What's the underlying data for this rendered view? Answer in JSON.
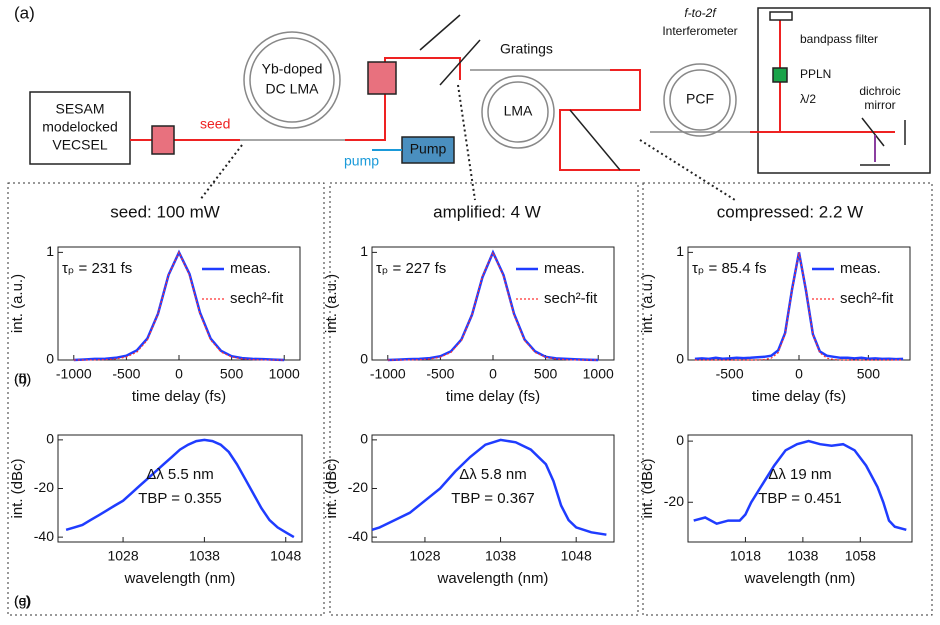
{
  "diagram": {
    "panel_label": "(a)",
    "sesam": [
      "SESAM",
      "modelocked",
      "VECSEL"
    ],
    "seed": "seed",
    "amplifier": [
      "Yb-doped",
      "DC LMA"
    ],
    "pump_arrow": "pump",
    "pump_box": "Pump",
    "gratings": "Gratings",
    "lma": "LMA",
    "pcf": "PCF",
    "interferometer": [
      "f-to-2f",
      "Interferometer"
    ],
    "bandpass": "bandpass filter",
    "ppln": "PPLN",
    "waveplate": "λ/2",
    "dichroic": [
      "dichroic",
      "mirror"
    ]
  },
  "chart_data": [
    {
      "type": "line",
      "label": "(b)",
      "title": "seed: 100 mW",
      "xlabel": "time delay (fs)",
      "ylabel": "int. (a.u.)",
      "annotations": [
        "τₚ = 231 fs"
      ],
      "legend": "upper right",
      "x": [
        -1000,
        -900,
        -800,
        -700,
        -600,
        -500,
        -400,
        -300,
        -200,
        -100,
        0,
        100,
        200,
        300,
        400,
        500,
        600,
        700,
        800,
        900,
        1000
      ],
      "series": [
        {
          "name": "meas.",
          "color": "#1f3cff",
          "values": [
            0,
            0.005,
            0.01,
            0.012,
            0.02,
            0.04,
            0.09,
            0.2,
            0.43,
            0.79,
            1,
            0.8,
            0.44,
            0.2,
            0.085,
            0.035,
            0.018,
            0.01,
            0.008,
            0.004,
            0
          ]
        },
        {
          "name": "sech²-fit",
          "color": "#ff3030",
          "values": [
            0,
            0,
            0.001,
            0.004,
            0.01,
            0.028,
            0.073,
            0.186,
            0.427,
            0.79,
            1,
            0.79,
            0.427,
            0.186,
            0.073,
            0.028,
            0.01,
            0.004,
            0.001,
            0,
            0
          ]
        }
      ],
      "xlim": [
        -1150,
        1150
      ],
      "ylim": [
        0,
        1.05
      ],
      "xticks": [
        -1000,
        -500,
        0,
        500,
        1000
      ],
      "yticks": [
        0,
        1
      ]
    },
    {
      "type": "line",
      "label": "(c)",
      "xlabel": "wavelength (nm)",
      "ylabel": "int. (dBc)",
      "annotations": [
        "Δλ 5.5 nm",
        "TBP = 0.355"
      ],
      "x": [
        1021,
        1022,
        1023,
        1024,
        1025,
        1026,
        1027,
        1028,
        1029,
        1030,
        1031,
        1032,
        1033,
        1034,
        1035,
        1036,
        1037,
        1038,
        1039,
        1040,
        1041,
        1042,
        1043,
        1044,
        1045,
        1046,
        1047,
        1048,
        1049
      ],
      "series": [
        {
          "color": "#1f3cff",
          "values": [
            -37,
            -36,
            -35,
            -33,
            -31,
            -29,
            -27,
            -25,
            -22,
            -19,
            -16,
            -13,
            -10,
            -7,
            -4,
            -2,
            -0.5,
            0,
            -0.5,
            -2,
            -5,
            -10,
            -16,
            -22,
            -28,
            -33,
            -36,
            -38,
            -40
          ]
        }
      ],
      "xlim": [
        1020,
        1050
      ],
      "ylim": [
        -42,
        2
      ],
      "xticks": [
        1028,
        1038,
        1048
      ],
      "yticks": [
        -40,
        -20,
        0
      ]
    },
    {
      "type": "line",
      "label": "(d)",
      "title": "amplified: 4 W",
      "xlabel": "time delay (fs)",
      "ylabel": "int. (a.u.)",
      "annotations": [
        "τₚ = 227 fs"
      ],
      "legend": "upper right",
      "x": [
        -1000,
        -900,
        -800,
        -700,
        -600,
        -500,
        -400,
        -300,
        -200,
        -100,
        0,
        100,
        200,
        300,
        400,
        500,
        600,
        700,
        800,
        900,
        1000
      ],
      "series": [
        {
          "name": "meas.",
          "color": "#1f3cff",
          "values": [
            0,
            0.004,
            0.008,
            0.01,
            0.018,
            0.035,
            0.08,
            0.19,
            0.42,
            0.77,
            1,
            0.79,
            0.43,
            0.19,
            0.08,
            0.03,
            0.015,
            0.01,
            0.006,
            0.003,
            0
          ]
        },
        {
          "name": "sech²-fit",
          "color": "#ff3030",
          "values": [
            0,
            0,
            0.001,
            0.003,
            0.009,
            0.026,
            0.07,
            0.18,
            0.42,
            0.78,
            1,
            0.78,
            0.42,
            0.18,
            0.07,
            0.026,
            0.009,
            0.003,
            0.001,
            0,
            0
          ]
        }
      ],
      "xlim": [
        -1150,
        1150
      ],
      "ylim": [
        0,
        1.05
      ],
      "xticks": [
        -1000,
        -500,
        0,
        500,
        1000
      ],
      "yticks": [
        0,
        1
      ]
    },
    {
      "type": "line",
      "label": "(e)",
      "xlabel": "wavelength (nm)",
      "ylabel": "int. (dBc)",
      "annotations": [
        "Δλ 5.8 nm",
        "TBP = 0.367"
      ],
      "x": [
        1021,
        1022,
        1024,
        1026,
        1028,
        1030,
        1032,
        1034,
        1036,
        1038,
        1040,
        1042,
        1044,
        1045,
        1046,
        1047,
        1048,
        1050,
        1052
      ],
      "series": [
        {
          "color": "#1f3cff",
          "values": [
            -37,
            -36,
            -33,
            -30,
            -25,
            -20,
            -13,
            -7,
            -2,
            0,
            -1,
            -4,
            -10,
            -17,
            -27,
            -33,
            -36,
            -38,
            -39
          ]
        }
      ],
      "xlim": [
        1021,
        1053
      ],
      "ylim": [
        -42,
        2
      ],
      "xticks": [
        1028,
        1038,
        1048
      ],
      "yticks": [
        -40,
        -20,
        0
      ]
    },
    {
      "type": "line",
      "label": "(f)",
      "title": "compressed: 2.2 W",
      "xlabel": "time delay (fs)",
      "ylabel": "int. (a.u.)",
      "annotations": [
        "τₚ = 85.4 fs"
      ],
      "legend": "upper right",
      "x": [
        -750,
        -700,
        -650,
        -600,
        -550,
        -500,
        -450,
        -400,
        -350,
        -300,
        -250,
        -200,
        -150,
        -100,
        -50,
        0,
        50,
        100,
        150,
        200,
        250,
        300,
        350,
        400,
        450,
        500,
        550,
        600,
        650,
        700,
        750
      ],
      "series": [
        {
          "name": "meas.",
          "color": "#1f3cff",
          "values": [
            0.01,
            0.015,
            0.01,
            0.02,
            0.012,
            0.015,
            0.02,
            0.018,
            0.02,
            0.025,
            0.03,
            0.04,
            0.09,
            0.25,
            0.66,
            1,
            0.65,
            0.24,
            0.08,
            0.04,
            0.03,
            0.02,
            0.02,
            0.015,
            0.02,
            0.012,
            0.015,
            0.01,
            0.012,
            0.008,
            0.01
          ]
        },
        {
          "name": "sech²-fit",
          "color": "#ff3030",
          "values": [
            0,
            0,
            0,
            0,
            0,
            0,
            0,
            0,
            0,
            0.001,
            0.005,
            0.018,
            0.068,
            0.238,
            0.656,
            1,
            0.656,
            0.238,
            0.068,
            0.018,
            0.005,
            0.001,
            0,
            0,
            0,
            0,
            0,
            0,
            0,
            0,
            0
          ]
        }
      ],
      "xlim": [
        -800,
        800
      ],
      "ylim": [
        0,
        1.05
      ],
      "xticks": [
        -500,
        0,
        500
      ],
      "yticks": [
        0,
        1
      ]
    },
    {
      "type": "line",
      "label": "(g)",
      "xlabel": "wavelength (nm)",
      "ylabel": "int. (dBc)",
      "annotations": [
        "Δλ 19 nm",
        "TBP = 0.451"
      ],
      "x": [
        1000,
        1004,
        1008,
        1012,
        1016,
        1018,
        1020,
        1024,
        1028,
        1032,
        1036,
        1040,
        1044,
        1048,
        1052,
        1056,
        1060,
        1064,
        1066,
        1068,
        1070,
        1074
      ],
      "series": [
        {
          "color": "#1f3cff",
          "values": [
            -26,
            -25,
            -27,
            -26,
            -26,
            -24,
            -20,
            -14,
            -8,
            -3,
            -1,
            0,
            -1,
            -1.5,
            -1,
            -3,
            -8,
            -15,
            -20,
            -26,
            -28,
            -29
          ]
        }
      ],
      "xlim": [
        998,
        1076
      ],
      "ylim": [
        -33,
        2
      ],
      "xticks": [
        1018,
        1038,
        1058
      ],
      "yticks": [
        -20,
        0
      ]
    }
  ]
}
